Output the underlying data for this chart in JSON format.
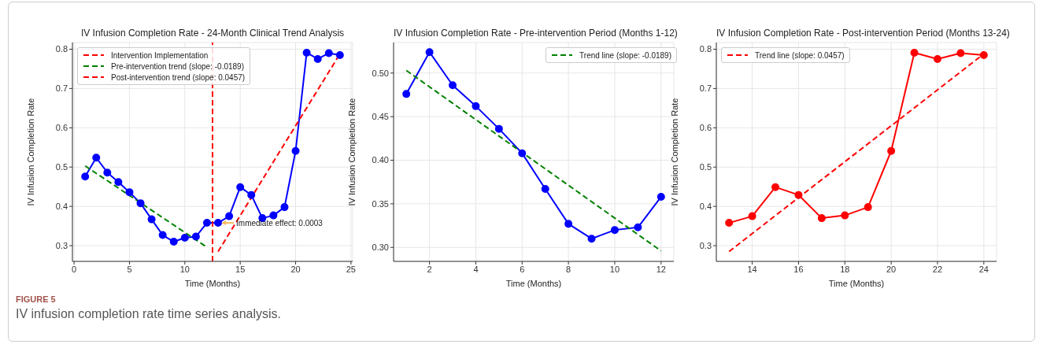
{
  "chart_data": [
    {
      "type": "line",
      "title": "IV Infusion Completion Rate - 24-Month Clinical Trend Analysis",
      "xlabel": "Time (Months)",
      "ylabel": "IV Infusion Completion Rate",
      "xlim": [
        -0.15,
        25.15
      ],
      "ylim": [
        0.26,
        0.817
      ],
      "xticks": [
        0,
        5,
        10,
        15,
        20,
        25
      ],
      "yticks": [
        0.3,
        0.4,
        0.5,
        0.6,
        0.7,
        0.8
      ],
      "grid": true,
      "legend": "top left",
      "ref_lines": [
        {
          "axis": "x",
          "value": 12.5,
          "label": "Intervention Implementation",
          "color": "#ff0000",
          "line_style": "dashed"
        }
      ],
      "annotations": [
        {
          "text": "Immediate effect: 0.0003",
          "x": 13,
          "y": 0.358
        },
        "FIGURE 5",
        "IV infusion completion rate time series analysis."
      ],
      "series": [
        {
          "color": "#0000ff",
          "marker": "circle",
          "line_style": "solid",
          "x": [
            1,
            2,
            3,
            4,
            5,
            6,
            7,
            8,
            9,
            10,
            11,
            12,
            13,
            14,
            15,
            16,
            17,
            18,
            19,
            20,
            21,
            22,
            23,
            24
          ],
          "values": [
            0.476,
            0.524,
            0.486,
            0.462,
            0.436,
            0.408,
            0.367,
            0.327,
            0.31,
            0.32,
            0.323,
            0.358,
            0.358,
            0.375,
            0.449,
            0.429,
            0.37,
            0.377,
            0.398,
            0.541,
            0.791,
            0.775,
            0.79,
            0.785
          ]
        },
        {
          "name": "Pre-intervention trend (slope: -0.0189)",
          "color": "#008000",
          "marker": "none",
          "line_style": "dashed",
          "x": [
            1,
            12
          ],
          "values": [
            0.503,
            0.296
          ]
        },
        {
          "name": "Post-intervention trend (slope: 0.0457)",
          "color": "#ff0000",
          "marker": "none",
          "line_style": "dashed",
          "x": [
            13,
            24
          ],
          "values": [
            0.285,
            0.788
          ]
        }
      ]
    },
    {
      "type": "line",
      "title": "IV Infusion Completion Rate - Pre-intervention Period (Months 1-12)",
      "xlabel": "Time (Months)",
      "ylabel": "IV Infusion Completion Rate",
      "xlim": [
        0.45,
        12.55
      ],
      "ylim": [
        0.284,
        0.535
      ],
      "xticks": [
        2,
        4,
        6,
        8,
        10,
        12
      ],
      "yticks": [
        {
          "value": 0.3,
          "label": "0.30"
        },
        {
          "value": 0.35,
          "label": "0.35"
        },
        {
          "value": 0.4,
          "label": "0.40"
        },
        {
          "value": 0.45,
          "label": "0.45"
        },
        {
          "value": 0.5,
          "label": "0.50"
        }
      ],
      "grid": true,
      "legend": "top right",
      "series": [
        {
          "color": "#0000ff",
          "marker": "circle",
          "line_style": "solid",
          "x": [
            1,
            2,
            3,
            4,
            5,
            6,
            7,
            8,
            9,
            10,
            11,
            12
          ],
          "values": [
            0.476,
            0.524,
            0.486,
            0.462,
            0.436,
            0.408,
            0.367,
            0.327,
            0.31,
            0.32,
            0.323,
            0.358
          ]
        },
        {
          "name": "Trend line (slope: -0.0189)",
          "color": "#008000",
          "marker": "none",
          "line_style": "dashed",
          "x": [
            1,
            12
          ],
          "values": [
            0.503,
            0.296
          ]
        }
      ]
    },
    {
      "type": "line",
      "title": "IV Infusion Completion Rate - Post-intervention Period (Months 13-24)",
      "xlabel": "Time (Months)",
      "ylabel": "IV Infusion Completion Rate",
      "xlim": [
        12.45,
        24.55
      ],
      "ylim": [
        0.26,
        0.817
      ],
      "xticks": [
        14,
        16,
        18,
        20,
        22,
        24
      ],
      "yticks": [
        0.3,
        0.4,
        0.5,
        0.6,
        0.7,
        0.8
      ],
      "grid": true,
      "legend": "top left",
      "series": [
        {
          "color": "#ff0000",
          "marker": "circle",
          "line_style": "solid",
          "x": [
            13,
            14,
            15,
            16,
            17,
            18,
            19,
            20,
            21,
            22,
            23,
            24
          ],
          "values": [
            0.358,
            0.375,
            0.449,
            0.429,
            0.37,
            0.377,
            0.398,
            0.541,
            0.791,
            0.775,
            0.79,
            0.785
          ]
        },
        {
          "name": "Trend line (slope: 0.0457)",
          "color": "#ff0000",
          "marker": "none",
          "line_style": "dashed",
          "x": [
            13,
            24
          ],
          "values": [
            0.285,
            0.788
          ]
        }
      ]
    }
  ]
}
